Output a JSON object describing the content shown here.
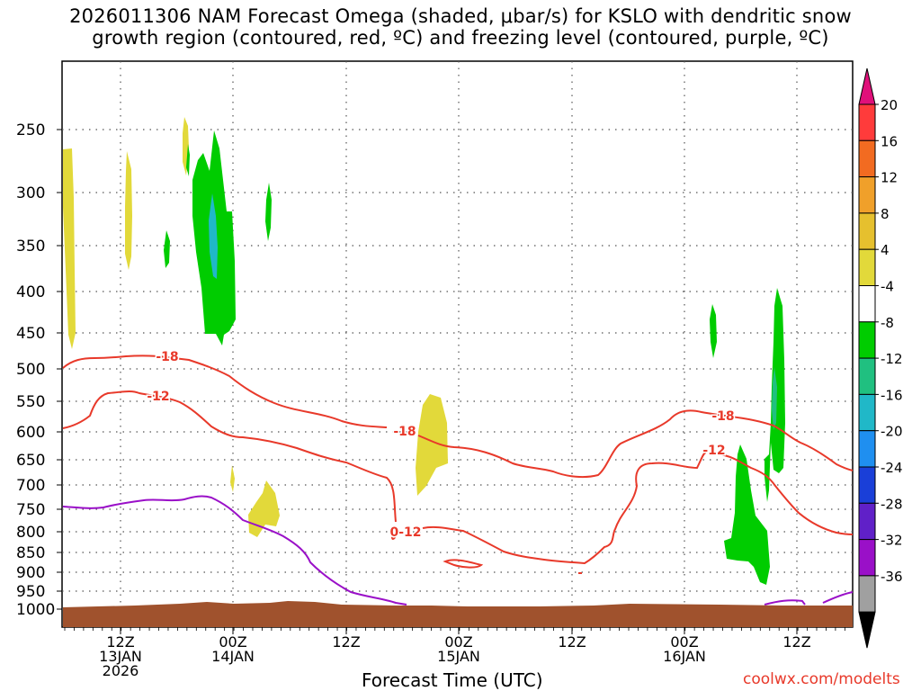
{
  "title": {
    "line1": "2026011306 NAM Forecast Omega (shaded, μbar/s) for KSLO with dendritic snow",
    "line2": "growth region (contoured, red, ºC) and freezing level (contoured, purple, ºC)"
  },
  "x_axis_title": "Forecast Time (UTC)",
  "credit": "coolwx.com/modelts",
  "y_ticks": [
    "250",
    "300",
    "350",
    "400",
    "450",
    "500",
    "550",
    "600",
    "650",
    "700",
    "750",
    "800",
    "850",
    "900",
    "950",
    "1000"
  ],
  "x_ticks": [
    {
      "lines": [
        "12Z",
        "13JAN",
        "2026"
      ]
    },
    {
      "lines": [
        "00Z",
        "14JAN"
      ]
    },
    {
      "lines": [
        "12Z"
      ]
    },
    {
      "lines": [
        "00Z",
        "15JAN"
      ]
    },
    {
      "lines": [
        "12Z"
      ]
    },
    {
      "lines": [
        "00Z",
        "16JAN"
      ]
    },
    {
      "lines": [
        "12Z"
      ]
    }
  ],
  "contour_labels": [
    {
      "text": "-18",
      "color": "#e8392a"
    },
    {
      "text": "-12",
      "color": "#e8392a"
    },
    {
      "text": "-18",
      "color": "#e8392a"
    },
    {
      "text": "0-12",
      "color": "#e8392a"
    },
    {
      "text": "-18",
      "color": "#e8392a"
    },
    {
      "text": "-12",
      "color": "#e8392a"
    }
  ],
  "colorbar": {
    "labels": [
      "20",
      "16",
      "12",
      "8",
      "4",
      "-4",
      "-8",
      "-12",
      "-16",
      "-20",
      "-24",
      "-28",
      "-32",
      "-36"
    ],
    "colors": [
      "#ff3b3b",
      "#f26b21",
      "#f0a02a",
      "#e6c02e",
      "#e2d93a",
      "#ffffff",
      "#00cc00",
      "#20c080",
      "#20b8c8",
      "#1f8ff0",
      "#1a3fd8",
      "#6020c8",
      "#9a10c8",
      "#a0a0a0"
    ],
    "top_arrow_color": "#e0107a",
    "bottom_arrow_color": "#000000"
  },
  "chart_data": {
    "type": "heatmap",
    "description_units": {
      "y": "pressure (hPa)",
      "x": "forecast time (UTC)"
    },
    "ylim": [
      1000,
      200
    ],
    "xlim": [
      "2026-01-13T06Z",
      "2026-01-16T18Z"
    ],
    "grid": true,
    "legend": "right colorbar",
    "colors": {
      "positive_omega": "#e2d93a",
      "negative_omega": "#00cc00",
      "strong_negative_omega": "#20b8c8",
      "dgz_contour": "#e8392a",
      "freezing_contour": "#9a10c8",
      "terrain": "#a0522d"
    }
  }
}
